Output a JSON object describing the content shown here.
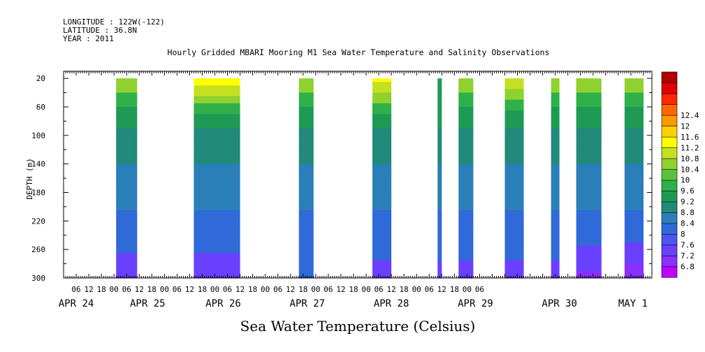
{
  "header": {
    "longitude": "LONGITUDE : 122W(-122)",
    "latitude": "LATITUDE : 36.8N",
    "year": "YEAR : 2011"
  },
  "chart_data": {
    "type": "heatmap",
    "title": "Hourly Gridded MBARI Mooring M1 Sea Water Temperature and Salinity Observations",
    "xlabel": "Sea Water Temperature (Celsius)",
    "ylabel": "DEPTH (m)",
    "ylim": [
      300,
      10
    ],
    "y_inverted": true,
    "y_ticks": [
      20,
      60,
      100,
      140,
      180,
      220,
      260,
      300
    ],
    "hour_tick_labels": [
      "06",
      "12",
      "18",
      "00",
      "06",
      "12",
      "18",
      "00",
      "06",
      "12",
      "18",
      "00",
      "06",
      "12",
      "18",
      "00",
      "06",
      "12",
      "18",
      "00",
      "06",
      "12",
      "18",
      "00",
      "06",
      "12",
      "18",
      "00",
      "06",
      "12",
      "18",
      "00",
      "06"
    ],
    "date_labels": [
      "APR 24",
      "APR 25",
      "APR 26",
      "APR 27",
      "APR 28",
      "APR 29",
      "APR 30",
      "MAY  1"
    ],
    "x_range_hours": [
      0,
      280
    ],
    "colorbar_levels": [
      6.8,
      7.2,
      7.6,
      8,
      8.4,
      8.8,
      9.2,
      9.6,
      10,
      10.4,
      10.8,
      11.2,
      11.6,
      12,
      12.4
    ],
    "colorbar_colors": [
      "#c000ff",
      "#8a30ff",
      "#6a40ff",
      "#4b55f0",
      "#2f6ad8",
      "#2a7fb8",
      "#218a7a",
      "#1f9a55",
      "#2fb04a",
      "#58c23a",
      "#8fd12e",
      "#c4e020",
      "#ffff00",
      "#ffd000",
      "#ff9900",
      "#ff6600",
      "#ff2a00",
      "#e00000",
      "#b00000"
    ],
    "depth_profile": [
      {
        "depth": 20,
        "temp": 10.0
      },
      {
        "depth": 60,
        "temp": 9.2
      },
      {
        "depth": 100,
        "temp": 8.7
      },
      {
        "depth": 140,
        "temp": 8.4
      },
      {
        "depth": 180,
        "temp": 8.2
      },
      {
        "depth": 220,
        "temp": 7.9
      },
      {
        "depth": 260,
        "temp": 7.6
      },
      {
        "depth": 300,
        "temp": 7.3
      }
    ],
    "data_segments": [
      {
        "start_hour": 25,
        "end_hour": 35,
        "surface_temp": 10.0,
        "bottom_temp": 7.4
      },
      {
        "start_hour": 62,
        "end_hour": 84,
        "surface_temp": 10.8,
        "bottom_temp": 7.4
      },
      {
        "start_hour": 112,
        "end_hour": 119,
        "surface_temp": 10.0,
        "bottom_temp": 7.6
      },
      {
        "start_hour": 147,
        "end_hour": 156,
        "surface_temp": 10.6,
        "bottom_temp": 7.5
      },
      {
        "start_hour": 178,
        "end_hour": 180,
        "surface_temp": 9.0,
        "bottom_temp": 7.5
      },
      {
        "start_hour": 188,
        "end_hour": 195,
        "surface_temp": 10.0,
        "bottom_temp": 7.5
      },
      {
        "start_hour": 210,
        "end_hour": 219,
        "surface_temp": 10.4,
        "bottom_temp": 7.5
      },
      {
        "start_hour": 232,
        "end_hour": 236,
        "surface_temp": 10.0,
        "bottom_temp": 7.5
      },
      {
        "start_hour": 244,
        "end_hour": 256,
        "surface_temp": 10.0,
        "bottom_temp": 7.1
      },
      {
        "start_hour": 267,
        "end_hour": 276,
        "surface_temp": 10.0,
        "bottom_temp": 6.9
      }
    ]
  }
}
